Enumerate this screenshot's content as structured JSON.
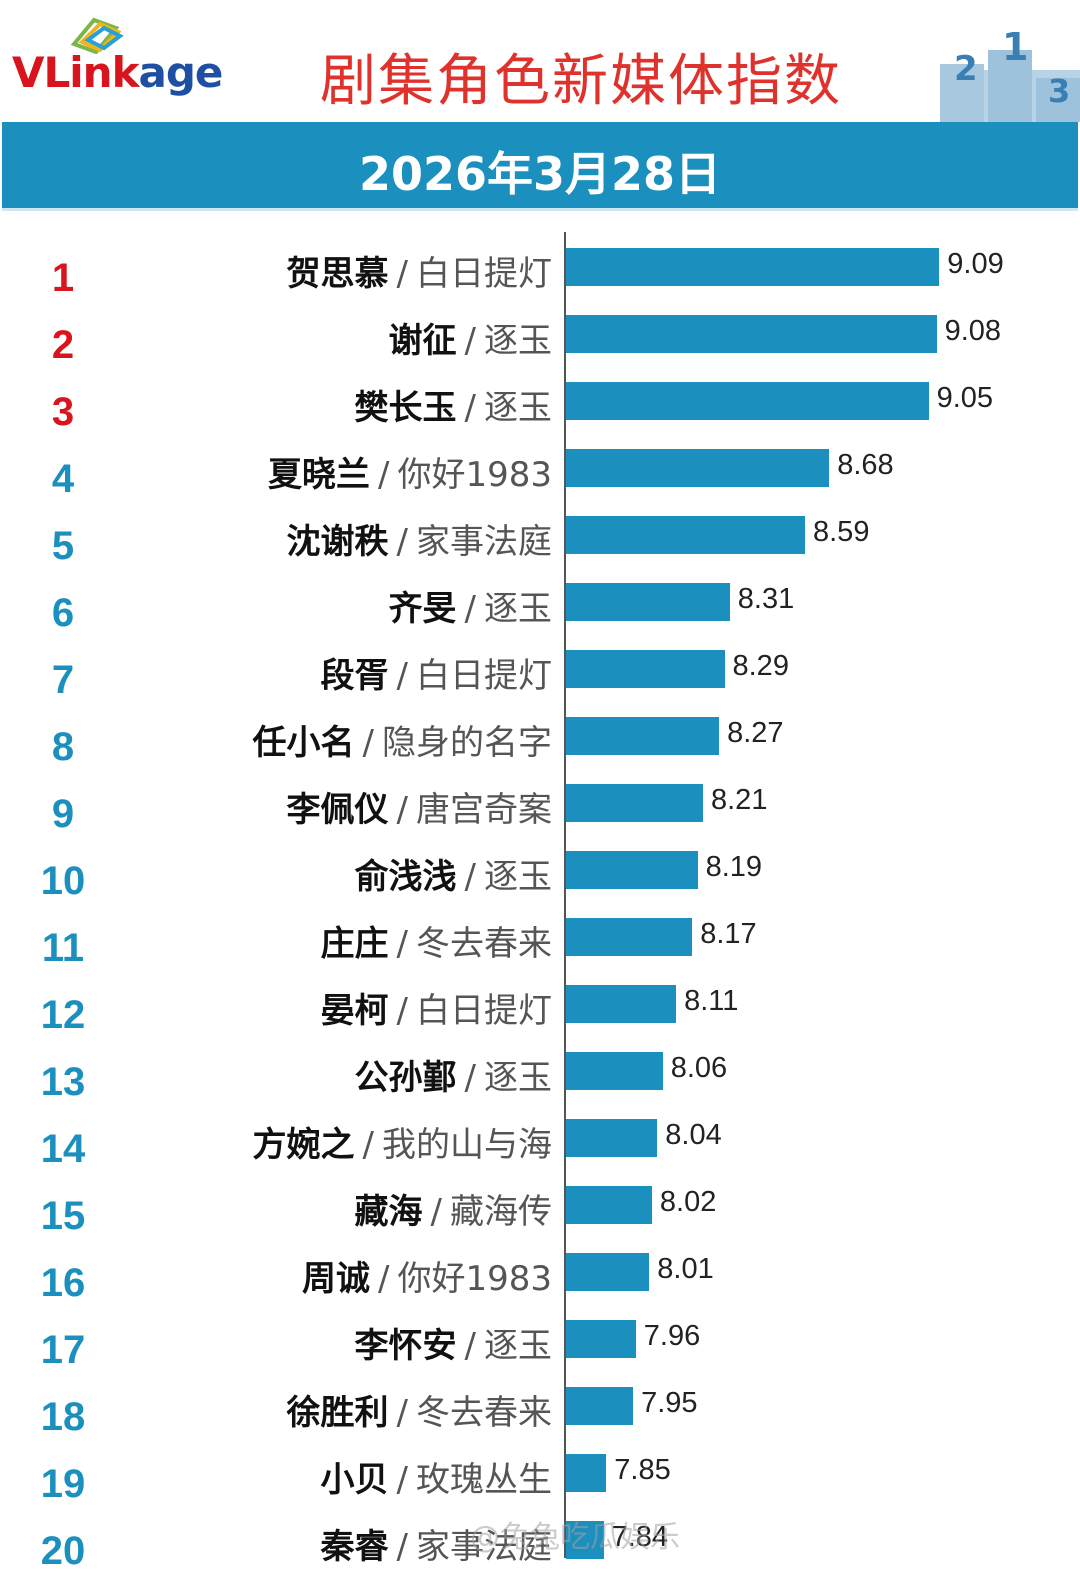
{
  "header": {
    "logo_text": "VLinkage",
    "title": "剧集角色新媒体指数",
    "date": "2026年3月28日"
  },
  "colors": {
    "bar": "#1b8fbe",
    "rank_top3": "#d8141d",
    "rank_other": "#1b8fbe",
    "title": "#e0322d"
  },
  "watermark": "@兔兔吃瓜娱乐",
  "chart_data": {
    "type": "bar",
    "orientation": "horizontal",
    "title": "剧集角色新媒体指数",
    "subtitle": "2026年3月28日",
    "xlim": [
      7.7,
      9.1
    ],
    "grid": false,
    "rows": [
      {
        "rank": "1",
        "name": "贺思慕",
        "sep": "/",
        "show": "白日提灯",
        "value": 9.09
      },
      {
        "rank": "2",
        "name": "谢征",
        "sep": "/",
        "show": "逐玉",
        "value": 9.08
      },
      {
        "rank": "3",
        "name": "樊长玉",
        "sep": "/",
        "show": "逐玉",
        "value": 9.05
      },
      {
        "rank": "4",
        "name": "夏晓兰",
        "sep": "/",
        "show": "你好1983",
        "value": 8.68
      },
      {
        "rank": "5",
        "name": "沈谢秩",
        "sep": "/",
        "show": "家事法庭",
        "value": 8.59
      },
      {
        "rank": "6",
        "name": "齐旻",
        "sep": "/",
        "show": "逐玉",
        "value": 8.31
      },
      {
        "rank": "7",
        "name": "段胥",
        "sep": "/",
        "show": "白日提灯",
        "value": 8.29
      },
      {
        "rank": "8",
        "name": "任小名",
        "sep": "/",
        "show": "隐身的名字",
        "value": 8.27
      },
      {
        "rank": "9",
        "name": "李佩仪",
        "sep": "/",
        "show": "唐宫奇案",
        "value": 8.21
      },
      {
        "rank": "10",
        "name": "俞浅浅",
        "sep": "/",
        "show": "逐玉",
        "value": 8.19
      },
      {
        "rank": "11",
        "name": "庄庄",
        "sep": "/",
        "show": "冬去春来",
        "value": 8.17
      },
      {
        "rank": "12",
        "name": "晏柯",
        "sep": "/",
        "show": "白日提灯",
        "value": 8.11
      },
      {
        "rank": "13",
        "name": "公孙鄞",
        "sep": "/",
        "show": "逐玉",
        "value": 8.06
      },
      {
        "rank": "14",
        "name": "方婉之",
        "sep": "/",
        "show": "我的山与海",
        "value": 8.04
      },
      {
        "rank": "15",
        "name": "藏海",
        "sep": "/",
        "show": "藏海传",
        "value": 8.02
      },
      {
        "rank": "16",
        "name": "周诚",
        "sep": "/",
        "show": "你好1983",
        "value": 8.01
      },
      {
        "rank": "17",
        "name": "李怀安",
        "sep": "/",
        "show": "逐玉",
        "value": 7.96
      },
      {
        "rank": "18",
        "name": "徐胜利",
        "sep": "/",
        "show": "冬去春来",
        "value": 7.95
      },
      {
        "rank": "19",
        "name": "小贝",
        "sep": "/",
        "show": "玫瑰丛生",
        "value": 7.85
      },
      {
        "rank": "20",
        "name": "秦睿",
        "sep": "/",
        "show": "家事法庭",
        "value": 7.84
      }
    ]
  }
}
